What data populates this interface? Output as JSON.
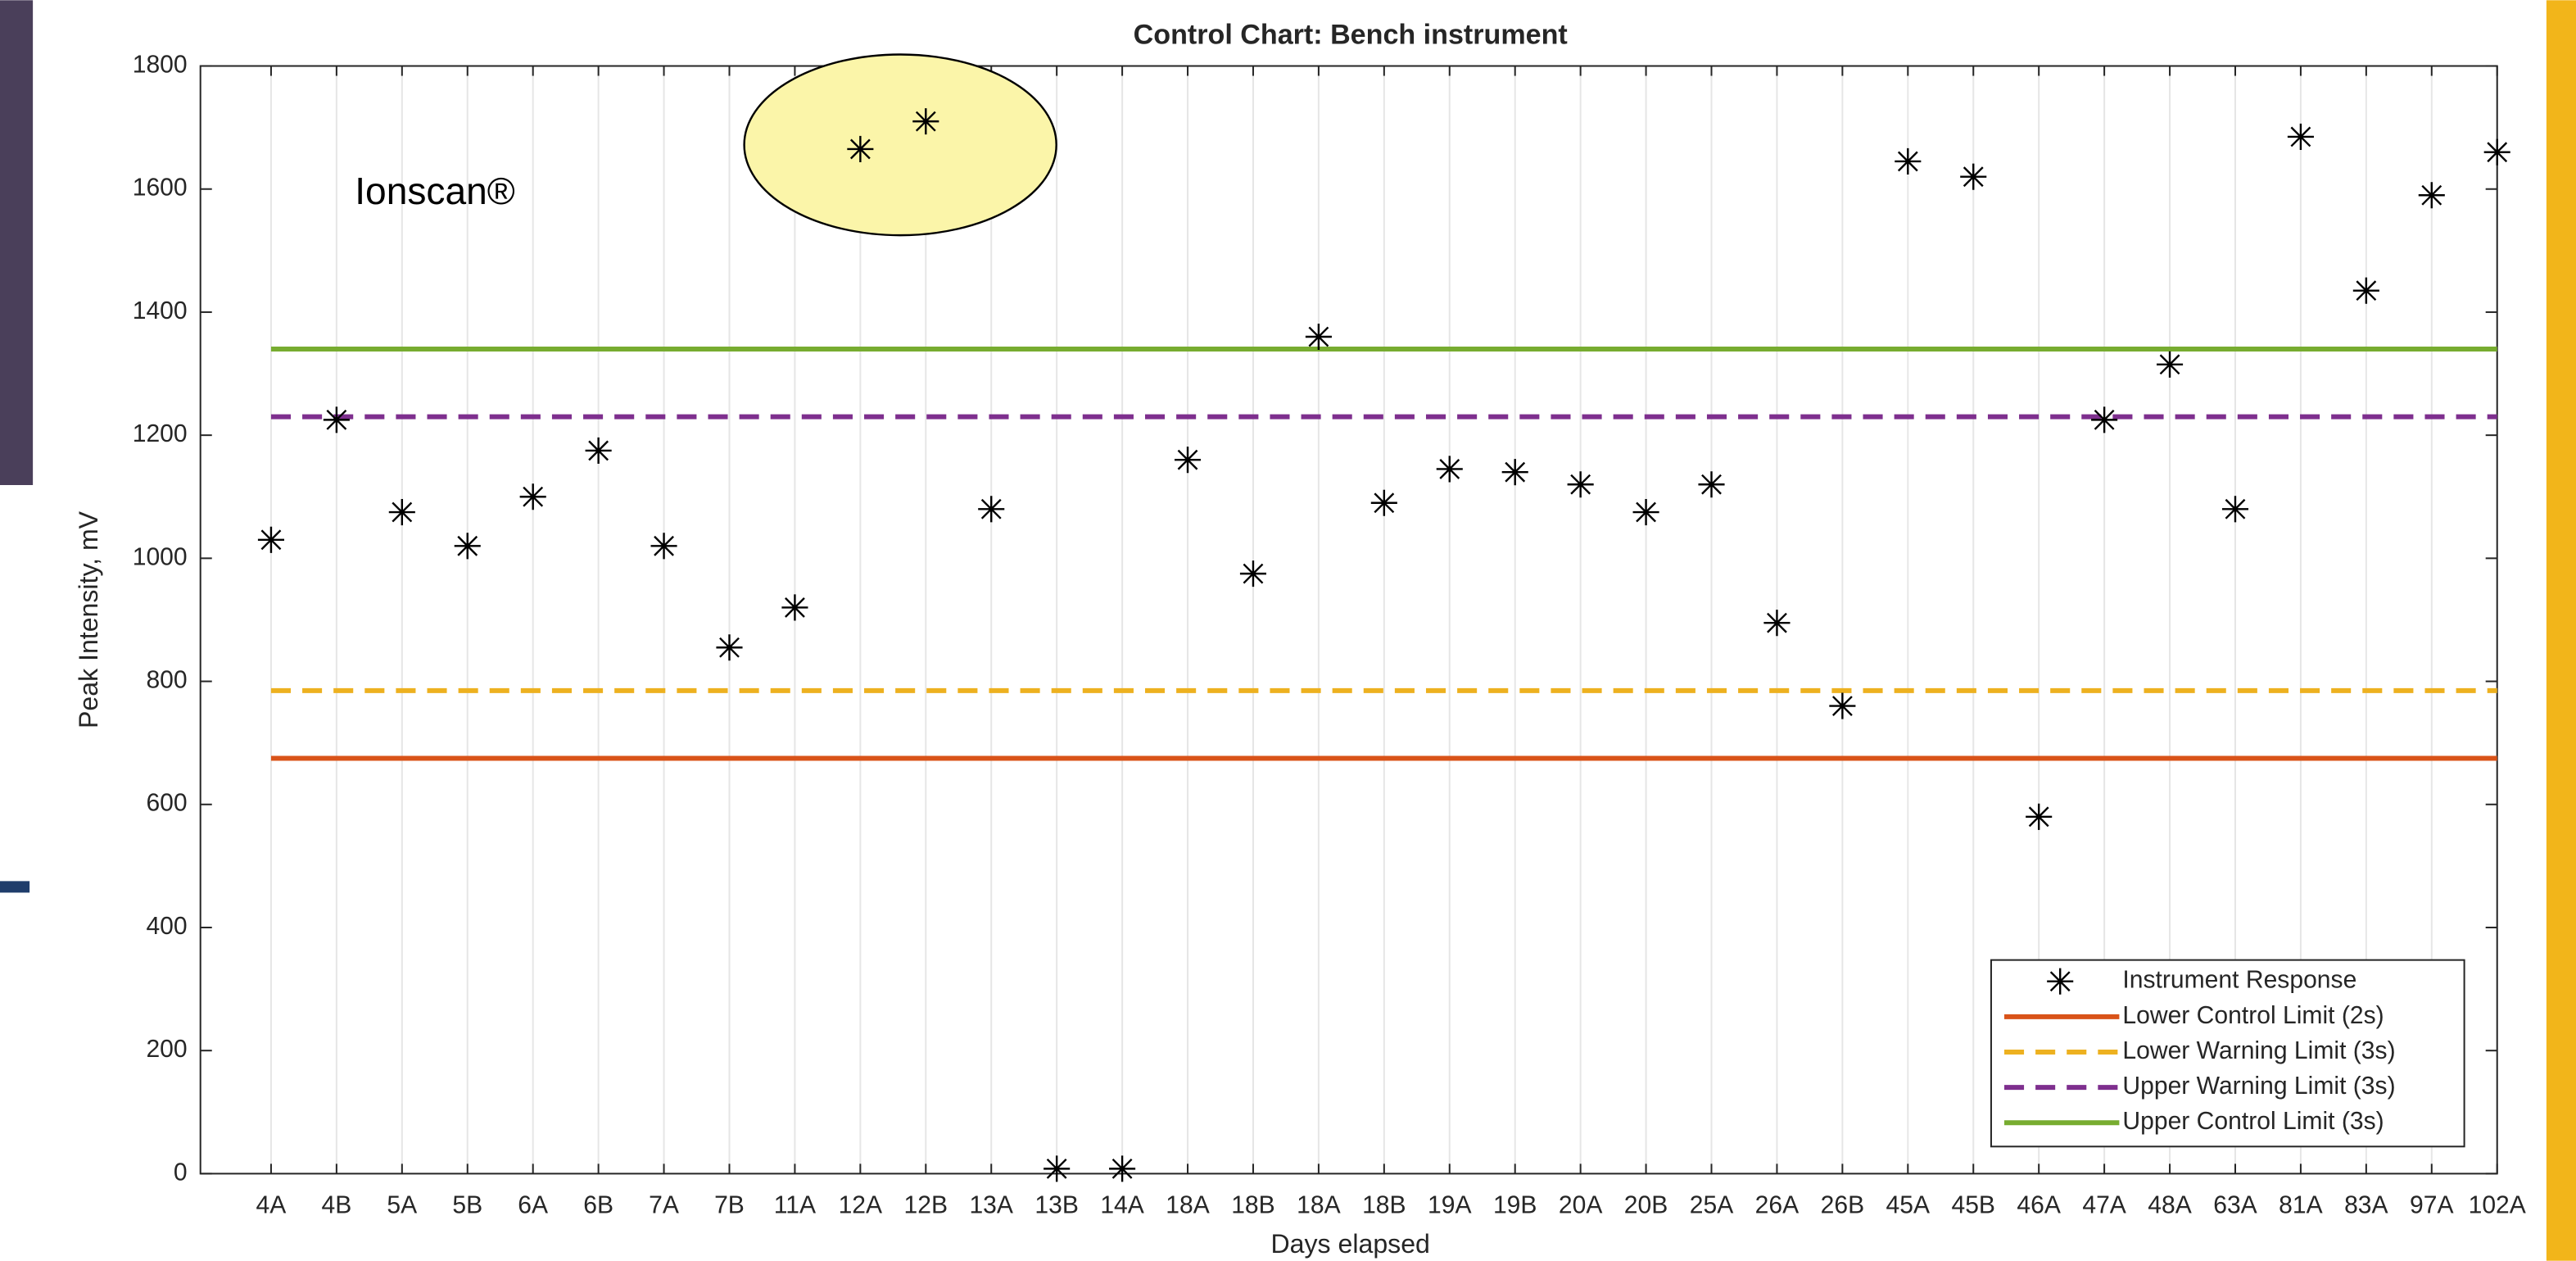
{
  "chart_data": {
    "type": "scatter",
    "title": "Control Chart: Bench instrument",
    "xlabel": "Days elapsed",
    "ylabel": "Peak Intensity, mV",
    "annotation": "Ionscan®",
    "categories": [
      "4A",
      "4B",
      "5A",
      "5B",
      "6A",
      "6B",
      "7A",
      "7B",
      "11A",
      "12A",
      "12B",
      "13A",
      "13B",
      "14A",
      "18A",
      "18B",
      "18A",
      "18B",
      "19A",
      "19B",
      "20A",
      "20B",
      "25A",
      "26A",
      "26B",
      "45A",
      "45B",
      "46A",
      "47A",
      "48A",
      "63A",
      "81A",
      "83A",
      "97A",
      "102A"
    ],
    "series": [
      {
        "name": "Instrument Response",
        "color": "#000000",
        "values": [
          1030,
          1225,
          1075,
          1020,
          1100,
          1175,
          1020,
          855,
          920,
          1665,
          1710,
          1080,
          8,
          8,
          1160,
          975,
          1360,
          1090,
          1145,
          1140,
          1120,
          1075,
          1120,
          895,
          760,
          1645,
          1620,
          580,
          1225,
          1315,
          1080,
          1685,
          1435,
          1590,
          1660
        ]
      }
    ],
    "reference_lines": [
      {
        "name": "Lower Control Limit (2s)",
        "color": "#d95319",
        "value": 675,
        "dashed": false
      },
      {
        "name": "Lower Warning Limit (3s)",
        "color": "#edb120",
        "value": 785,
        "dashed": true
      },
      {
        "name": "Upper Warning Limit (3s)",
        "color": "#7e2f8e",
        "value": 1230,
        "dashed": true
      },
      {
        "name": "Upper Control Limit (3s)",
        "color": "#77ac30",
        "value": 1340,
        "dashed": false
      }
    ],
    "ylim": [
      0,
      1800
    ],
    "yticks": [
      0,
      200,
      400,
      600,
      800,
      1000,
      1200,
      1400,
      1600,
      1800
    ],
    "grid": "x"
  }
}
